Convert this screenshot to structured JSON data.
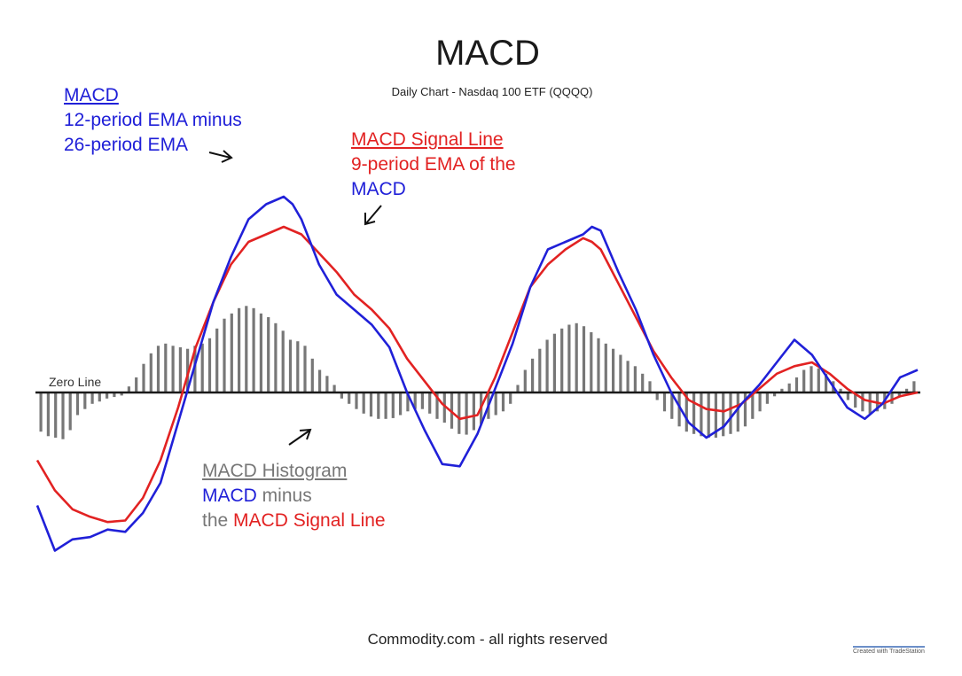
{
  "chart_data": {
    "type": "line",
    "title": "MACD",
    "subtitle": "Daily Chart - Nasdaq 100 ETF (QQQQ)",
    "zero_line_label": "Zero Line",
    "y_range": [
      -2.2,
      2.8
    ],
    "x_range": [
      0,
      100
    ],
    "series": [
      {
        "name": "MACD",
        "color": "#2020d8",
        "points": [
          [
            0,
            -1.5
          ],
          [
            2,
            -2.1
          ],
          [
            4,
            -1.95
          ],
          [
            6,
            -1.92
          ],
          [
            8,
            -1.82
          ],
          [
            10,
            -1.85
          ],
          [
            12,
            -1.6
          ],
          [
            14,
            -1.2
          ],
          [
            16,
            -0.4
          ],
          [
            18,
            0.4
          ],
          [
            20,
            1.2
          ],
          [
            22,
            1.8
          ],
          [
            24,
            2.3
          ],
          [
            26,
            2.5
          ],
          [
            28,
            2.6
          ],
          [
            29,
            2.5
          ],
          [
            30,
            2.3
          ],
          [
            32,
            1.7
          ],
          [
            34,
            1.3
          ],
          [
            36,
            1.1
          ],
          [
            38,
            0.9
          ],
          [
            40,
            0.6
          ],
          [
            42,
            0.0
          ],
          [
            44,
            -0.5
          ],
          [
            46,
            -0.95
          ],
          [
            48,
            -0.98
          ],
          [
            50,
            -0.55
          ],
          [
            52,
            0.05
          ],
          [
            54,
            0.65
          ],
          [
            56,
            1.4
          ],
          [
            58,
            1.9
          ],
          [
            60,
            2.0
          ],
          [
            62,
            2.1
          ],
          [
            63,
            2.2
          ],
          [
            64,
            2.15
          ],
          [
            66,
            1.6
          ],
          [
            68,
            1.1
          ],
          [
            70,
            0.5
          ],
          [
            72,
            0.0
          ],
          [
            74,
            -0.4
          ],
          [
            76,
            -0.6
          ],
          [
            78,
            -0.45
          ],
          [
            80,
            -0.15
          ],
          [
            82,
            0.1
          ],
          [
            84,
            0.4
          ],
          [
            86,
            0.7
          ],
          [
            88,
            0.5
          ],
          [
            90,
            0.15
          ],
          [
            92,
            -0.2
          ],
          [
            94,
            -0.35
          ],
          [
            96,
            -0.15
          ],
          [
            98,
            0.2
          ],
          [
            100,
            0.3
          ]
        ]
      },
      {
        "name": "MACD Signal Line",
        "color": "#e22222",
        "points": [
          [
            0,
            -0.9
          ],
          [
            2,
            -1.3
          ],
          [
            4,
            -1.55
          ],
          [
            6,
            -1.65
          ],
          [
            8,
            -1.72
          ],
          [
            10,
            -1.7
          ],
          [
            12,
            -1.4
          ],
          [
            14,
            -0.9
          ],
          [
            16,
            -0.2
          ],
          [
            18,
            0.6
          ],
          [
            20,
            1.2
          ],
          [
            22,
            1.7
          ],
          [
            24,
            2.0
          ],
          [
            26,
            2.1
          ],
          [
            28,
            2.2
          ],
          [
            30,
            2.1
          ],
          [
            32,
            1.85
          ],
          [
            34,
            1.6
          ],
          [
            36,
            1.3
          ],
          [
            38,
            1.1
          ],
          [
            40,
            0.85
          ],
          [
            42,
            0.45
          ],
          [
            44,
            0.15
          ],
          [
            46,
            -0.15
          ],
          [
            48,
            -0.35
          ],
          [
            50,
            -0.3
          ],
          [
            52,
            0.2
          ],
          [
            54,
            0.8
          ],
          [
            56,
            1.4
          ],
          [
            58,
            1.7
          ],
          [
            60,
            1.9
          ],
          [
            62,
            2.05
          ],
          [
            63,
            2.0
          ],
          [
            64,
            1.9
          ],
          [
            66,
            1.45
          ],
          [
            68,
            1.0
          ],
          [
            70,
            0.55
          ],
          [
            72,
            0.2
          ],
          [
            74,
            -0.1
          ],
          [
            76,
            -0.22
          ],
          [
            78,
            -0.25
          ],
          [
            80,
            -0.15
          ],
          [
            82,
            0.05
          ],
          [
            84,
            0.25
          ],
          [
            86,
            0.35
          ],
          [
            88,
            0.4
          ],
          [
            90,
            0.25
          ],
          [
            92,
            0.05
          ],
          [
            94,
            -0.1
          ],
          [
            96,
            -0.15
          ],
          [
            98,
            -0.05
          ],
          [
            100,
            0.0
          ]
        ]
      },
      {
        "name": "MACD Histogram",
        "color": "#777777",
        "type": "bar",
        "values": [
          -0.52,
          -0.58,
          -0.6,
          -0.62,
          -0.5,
          -0.3,
          -0.22,
          -0.15,
          -0.12,
          -0.08,
          -0.06,
          -0.04,
          0.08,
          0.2,
          0.38,
          0.52,
          0.62,
          0.65,
          0.62,
          0.6,
          0.58,
          0.62,
          0.65,
          0.72,
          0.85,
          0.98,
          1.05,
          1.12,
          1.15,
          1.12,
          1.05,
          1.0,
          0.92,
          0.82,
          0.7,
          0.68,
          0.62,
          0.45,
          0.3,
          0.22,
          0.1,
          -0.08,
          -0.15,
          -0.22,
          -0.28,
          -0.32,
          -0.35,
          -0.35,
          -0.34,
          -0.3,
          -0.25,
          -0.22,
          -0.22,
          -0.28,
          -0.35,
          -0.4,
          -0.48,
          -0.55,
          -0.56,
          -0.5,
          -0.42,
          -0.35,
          -0.3,
          -0.25,
          -0.15,
          0.1,
          0.3,
          0.45,
          0.58,
          0.7,
          0.78,
          0.85,
          0.9,
          0.92,
          0.88,
          0.8,
          0.72,
          0.65,
          0.58,
          0.5,
          0.42,
          0.35,
          0.25,
          0.15,
          -0.1,
          -0.25,
          -0.35,
          -0.45,
          -0.52,
          -0.55,
          -0.58,
          -0.6,
          -0.6,
          -0.58,
          -0.55,
          -0.52,
          -0.45,
          -0.35,
          -0.25,
          -0.15,
          -0.05,
          0.05,
          0.12,
          0.2,
          0.3,
          0.35,
          0.32,
          0.25,
          0.15,
          0.05,
          -0.1,
          -0.2,
          -0.25,
          -0.28,
          -0.25,
          -0.22,
          -0.15,
          -0.05,
          0.05,
          0.15
        ]
      }
    ]
  },
  "annotations": {
    "macd": {
      "title": "MACD",
      "line1": "12-period EMA minus",
      "line2": "26-period EMA"
    },
    "signal": {
      "title": "MACD Signal Line",
      "line1": "9-period EMA of the",
      "line2": "MACD"
    },
    "histogram": {
      "title": "MACD Histogram",
      "line1_blue": "MACD",
      "line1_gray": " minus",
      "line2_gray": "the ",
      "line2_red": "MACD Signal Line"
    }
  },
  "footer": "Commodity.com - all rights reserved",
  "credit": "Created with TradeStation"
}
